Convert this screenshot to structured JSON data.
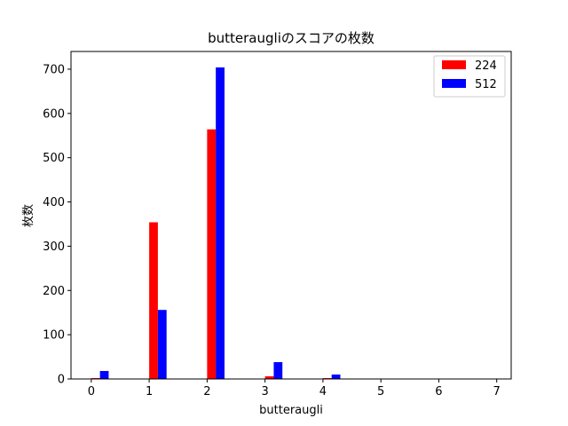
{
  "chart_data": {
    "type": "bar",
    "title": "butteraugliのスコアの枚数",
    "xlabel": "butteraugli",
    "ylabel": "枚数",
    "x": [
      0,
      1,
      2,
      3,
      4
    ],
    "series": [
      {
        "name": "224",
        "color": "#ff0000",
        "values": [
          2,
          354,
          564,
          6,
          2
        ]
      },
      {
        "name": "512",
        "color": "#0000ff",
        "values": [
          18,
          156,
          704,
          38,
          10
        ]
      }
    ],
    "xlim": [
      -0.35,
      7.25
    ],
    "ylim": [
      0,
      740
    ],
    "xticks": [
      0,
      1,
      2,
      3,
      4,
      5,
      6,
      7
    ],
    "yticks": [
      0,
      100,
      200,
      300,
      400,
      500,
      600,
      700
    ],
    "grid": false,
    "legend_position": "top-right"
  }
}
